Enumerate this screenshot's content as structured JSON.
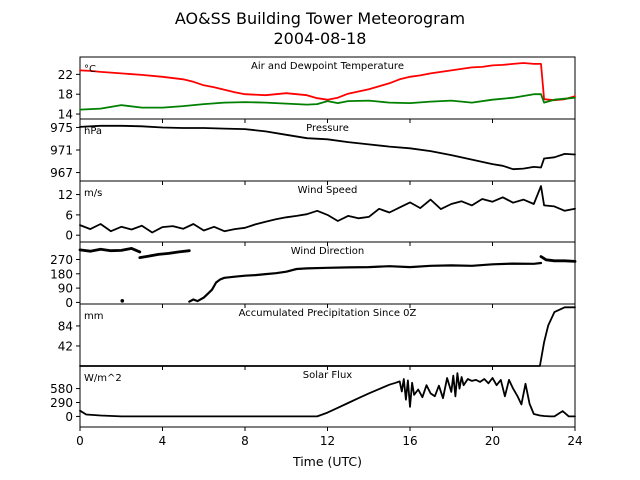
{
  "figure": {
    "title_line1": "AO&SS Building Tower Meteorogram",
    "title_line2": "2004-08-18",
    "xlabel": "Time (UTC)"
  },
  "chart_data": {
    "type": "line",
    "title": "AO&SS Building Tower Meteorogram 2004-08-18",
    "xlabel": "Time (UTC)",
    "xlim": [
      0,
      24
    ],
    "xticks": [
      0,
      4,
      8,
      12,
      16,
      20,
      24
    ],
    "panels": [
      {
        "title": "Air and Dewpoint Temperature",
        "unit": "°C",
        "ylim": [
          13,
          25.5
        ],
        "yticks": [
          14,
          18,
          22
        ],
        "series": [
          {
            "color": "#ff0000",
            "width": 1.8,
            "x": [
              0,
              0.5,
              1,
              2,
              3,
              4,
              5,
              5.5,
              6,
              6.5,
              7,
              7.5,
              8,
              9,
              10,
              10.5,
              11,
              11.5,
              12,
              12.5,
              13,
              14,
              15,
              15.5,
              16,
              16.5,
              17,
              17.5,
              18,
              18.5,
              19,
              19.5,
              20,
              20.5,
              21,
              21.5,
              22,
              22.35,
              22.5,
              23,
              23.5,
              24
            ],
            "y": [
              22.8,
              22.7,
              22.5,
              22.2,
              21.9,
              21.5,
              21.0,
              20.5,
              19.8,
              19.4,
              18.9,
              18.4,
              18.0,
              17.8,
              18.2,
              18.0,
              17.8,
              17.2,
              16.9,
              17.3,
              18.1,
              19.0,
              20.2,
              21.0,
              21.5,
              21.8,
              22.2,
              22.5,
              22.8,
              23.1,
              23.4,
              23.5,
              23.8,
              23.9,
              24.1,
              24.3,
              24.1,
              24.1,
              17.0,
              16.8,
              17.0,
              17.6
            ]
          },
          {
            "color": "#008000",
            "width": 1.8,
            "x": [
              0,
              1,
              2,
              3,
              4,
              5,
              6,
              7,
              8,
              9,
              10,
              11,
              11.5,
              12,
              12.5,
              13,
              14,
              15,
              16,
              17,
              18,
              19,
              20,
              21,
              22,
              22.35,
              22.5,
              23,
              24
            ],
            "y": [
              14.9,
              15.1,
              15.8,
              15.3,
              15.3,
              15.6,
              16.0,
              16.3,
              16.4,
              16.3,
              16.1,
              15.9,
              16.0,
              16.6,
              16.2,
              16.6,
              16.7,
              16.3,
              16.2,
              16.5,
              16.7,
              16.3,
              16.9,
              17.3,
              18.0,
              18.0,
              16.3,
              16.9,
              17.3
            ]
          }
        ]
      },
      {
        "title": "Pressure",
        "unit": "hPa",
        "ylim": [
          965.5,
          976.5
        ],
        "yticks": [
          967,
          971,
          975
        ],
        "series": [
          {
            "color": "#000000",
            "width": 1.8,
            "x": [
              0,
              1,
              2,
              3,
              4,
              5,
              6,
              7,
              8,
              9,
              10,
              11,
              12,
              13,
              14,
              15,
              16,
              17,
              18,
              19,
              20,
              20.5,
              21,
              21.5,
              22,
              22.35,
              22.5,
              23,
              23.5,
              24
            ],
            "y": [
              975.1,
              975.3,
              975.3,
              975.2,
              975.0,
              974.9,
              974.9,
              974.8,
              974.7,
              974.3,
              973.7,
              973.1,
              972.9,
              972.4,
              972.0,
              971.6,
              971.3,
              970.8,
              970.1,
              969.3,
              968.5,
              968.2,
              967.6,
              967.7,
              968.0,
              967.9,
              969.5,
              969.7,
              970.3,
              970.2
            ]
          }
        ]
      },
      {
        "title": "Wind Speed",
        "unit": "m/s",
        "ylim": [
          -2,
          16
        ],
        "yticks": [
          0,
          6,
          12
        ],
        "series": [
          {
            "color": "#000000",
            "width": 1.8,
            "x": [
              0,
              0.5,
              1,
              1.5,
              2,
              2.5,
              3,
              3.5,
              4,
              4.5,
              5,
              5.5,
              6,
              6.5,
              7,
              7.5,
              8,
              8.5,
              9,
              9.5,
              10,
              10.5,
              11,
              11.5,
              12,
              12.5,
              13,
              13.5,
              14,
              14.5,
              15,
              15.5,
              16,
              16.5,
              17,
              17.5,
              18,
              18.5,
              19,
              19.5,
              20,
              20.5,
              21,
              21.5,
              22,
              22.35,
              22.5,
              23,
              23.5,
              24
            ],
            "y": [
              3.0,
              1.8,
              3.3,
              1.2,
              2.5,
              1.7,
              2.8,
              0.8,
              2.4,
              2.7,
              1.9,
              3.3,
              1.4,
              2.5,
              1.2,
              1.8,
              2.2,
              3.2,
              4.0,
              4.7,
              5.3,
              5.7,
              6.2,
              7.2,
              6.0,
              4.2,
              5.7,
              5.0,
              5.4,
              7.8,
              6.7,
              8.2,
              9.7,
              8.0,
              10.5,
              7.7,
              9.2,
              10.0,
              8.8,
              10.7,
              9.9,
              11.2,
              9.6,
              10.5,
              9.2,
              14.5,
              8.8,
              8.5,
              7.2,
              7.8
            ]
          }
        ]
      },
      {
        "title": "Wind Direction",
        "unit": "",
        "ylim": [
          -10,
          380
        ],
        "yticks": [
          0,
          90,
          180,
          270
        ],
        "series": [
          {
            "color": "#000000",
            "width": 2.8,
            "x": [
              0,
              0.5,
              1,
              1.5,
              2,
              2.5,
              2.9
            ],
            "y": [
              330,
              322,
              335,
              325,
              327,
              340,
              318
            ]
          },
          {
            "color": "#000000",
            "width": 2.8,
            "x": [
              2.9,
              3.3,
              3.8,
              4.3,
              4.8,
              5.3
            ],
            "y": [
              282,
              290,
              302,
              308,
              318,
              325
            ]
          },
          {
            "color": "#000000",
            "width": 2.2,
            "x": [
              5.3,
              5.5,
              5.7,
              6.0,
              6.2,
              6.4,
              6.6,
              6.8,
              7.0,
              7.5,
              8.0,
              8.5,
              9.0,
              9.5,
              10.0,
              10.5,
              11.0,
              12.0,
              13.0,
              14.0,
              15.0,
              16.0,
              17.0,
              18.0,
              19.0,
              20.0,
              21.0,
              22.0,
              22.35
            ],
            "y": [
              5,
              18,
              8,
              30,
              55,
              80,
              125,
              145,
              155,
              162,
              168,
              172,
              178,
              184,
              193,
              210,
              214,
              218,
              220,
              222,
              228,
              222,
              230,
              233,
              230,
              240,
              244,
              243,
              248
            ]
          },
          {
            "color": "#000000",
            "width": 2.8,
            "x": [
              22.35,
              22.6,
              23.0,
              23.5,
              24.0
            ],
            "y": [
              288,
              268,
              262,
              262,
              258
            ]
          }
        ],
        "points": [
          {
            "x": 2.05,
            "y": 10
          }
        ]
      },
      {
        "title": "Accumulated Precipitation Since 0Z",
        "unit": "mm",
        "ylim": [
          0,
          130
        ],
        "yticks": [
          42,
          84
        ],
        "series": [
          {
            "color": "#000000",
            "width": 1.8,
            "x": [
              0,
              22.3,
              22.5,
              22.7,
              23.0,
              23.5,
              24
            ],
            "y": [
              0,
              0,
              50,
              85,
              113,
              123,
              123
            ]
          }
        ]
      },
      {
        "title": "Solar Flux",
        "unit": "W/m^2",
        "ylim": [
          -220,
          1050
        ],
        "yticks": [
          0,
          290,
          580
        ],
        "series": [
          {
            "color": "#000000",
            "width": 1.8,
            "x": [
              0,
              0.3,
              1,
              2,
              4,
              6,
              8,
              10,
              11.5,
              12,
              12.5,
              13,
              13.5,
              14,
              14.5,
              15,
              15.3,
              15.5,
              15.6,
              15.7,
              15.8,
              15.9,
              16.0,
              16.1,
              16.2,
              16.4,
              16.6,
              16.8,
              17.0,
              17.2,
              17.4,
              17.6,
              17.8,
              18.0,
              18.1,
              18.2,
              18.3,
              18.4,
              18.5,
              18.6,
              18.8,
              19.0,
              19.2,
              19.4,
              19.6,
              19.8,
              20.0,
              20.2,
              20.4,
              20.6,
              20.8,
              21.0,
              21.2,
              21.4,
              21.6,
              21.8,
              22.0,
              22.3,
              22.5,
              22.8,
              23,
              23.4,
              23.7,
              24
            ],
            "y": [
              120,
              40,
              20,
              0,
              0,
              0,
              0,
              0,
              0,
              80,
              180,
              280,
              380,
              480,
              570,
              660,
              700,
              730,
              520,
              780,
              350,
              750,
              200,
              700,
              450,
              560,
              400,
              650,
              480,
              420,
              640,
              380,
              800,
              510,
              850,
              420,
              900,
              580,
              820,
              650,
              780,
              740,
              760,
              720,
              780,
              690,
              800,
              650,
              760,
              420,
              760,
              580,
              430,
              250,
              680,
              260,
              50,
              20,
              10,
              0,
              0,
              110,
              0,
              0
            ]
          }
        ]
      }
    ]
  }
}
